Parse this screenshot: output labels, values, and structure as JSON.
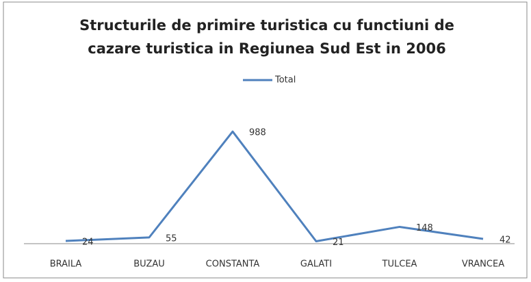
{
  "chart_data": {
    "type": "line",
    "title_lines": [
      "Structurile de primire turistica cu functiuni de",
      "cazare turistica in Regiunea Sud Est in 2006"
    ],
    "categories": [
      "BRAILA",
      "BUZAU",
      "CONSTANTA",
      "GALATI",
      "TULCEA",
      "VRANCEA"
    ],
    "series": [
      {
        "name": "Total",
        "color": "#4f81bd",
        "values": [
          24,
          55,
          988,
          21,
          148,
          42
        ]
      }
    ],
    "ylim": [
      0,
      1200
    ],
    "legend": "top"
  }
}
